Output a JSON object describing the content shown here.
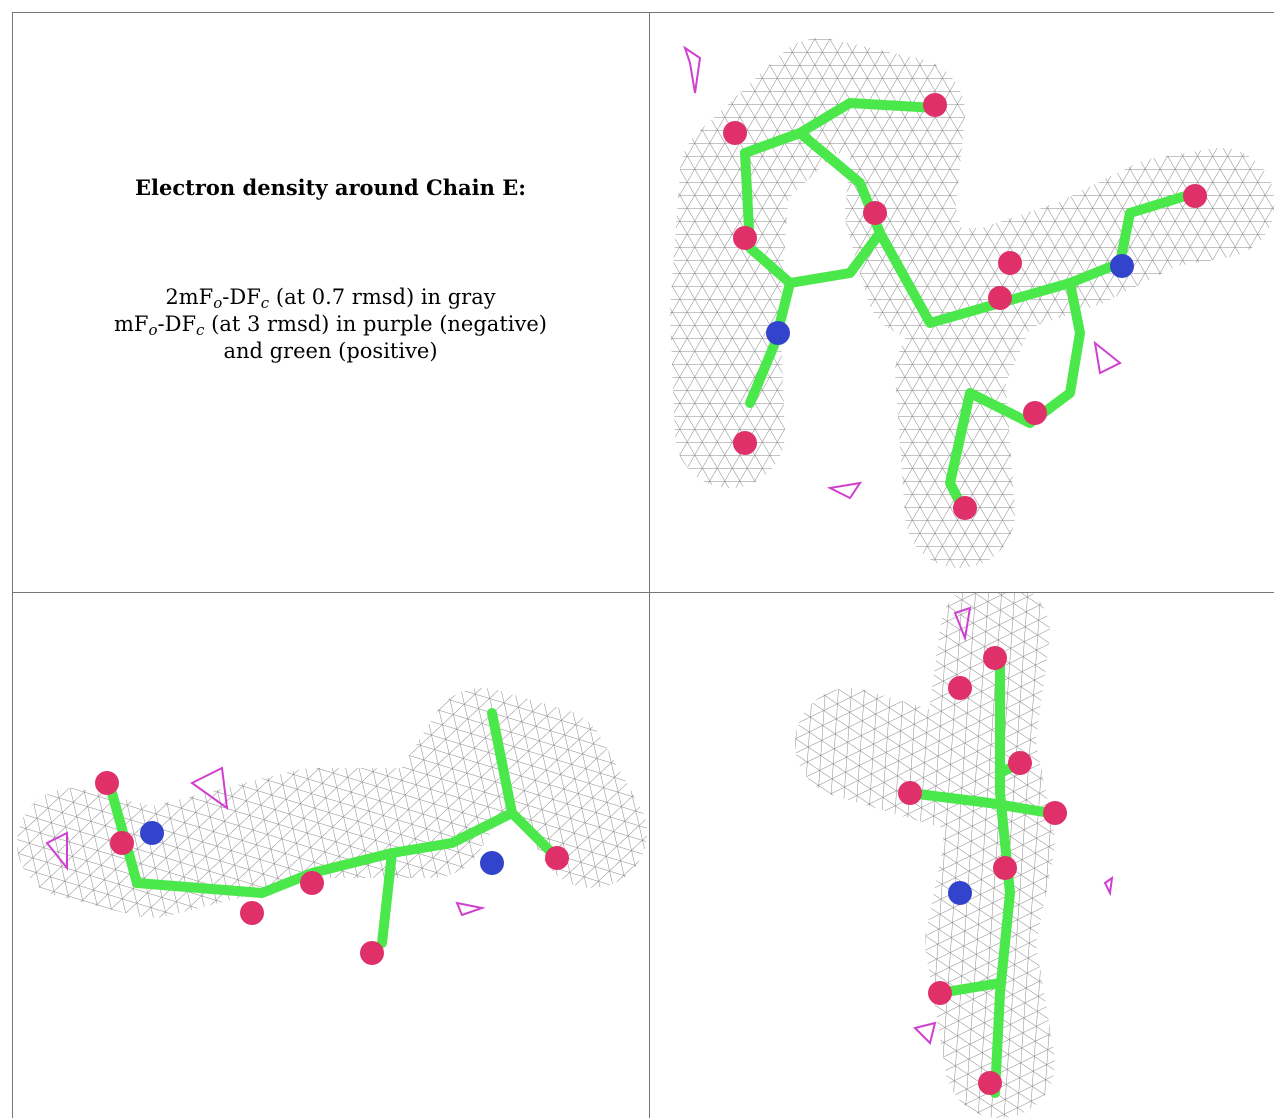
{
  "title": "Electron density around Chain E:",
  "caption": [
    [
      "2mF",
      "o",
      "-DF",
      "c",
      " (at 0.7 rmsd) in gray"
    ],
    [
      "mF",
      "o",
      "-DF",
      "c",
      " (at 3 rmsd) in purple (negative)"
    ],
    [
      "and green (positive)"
    ]
  ]
}
